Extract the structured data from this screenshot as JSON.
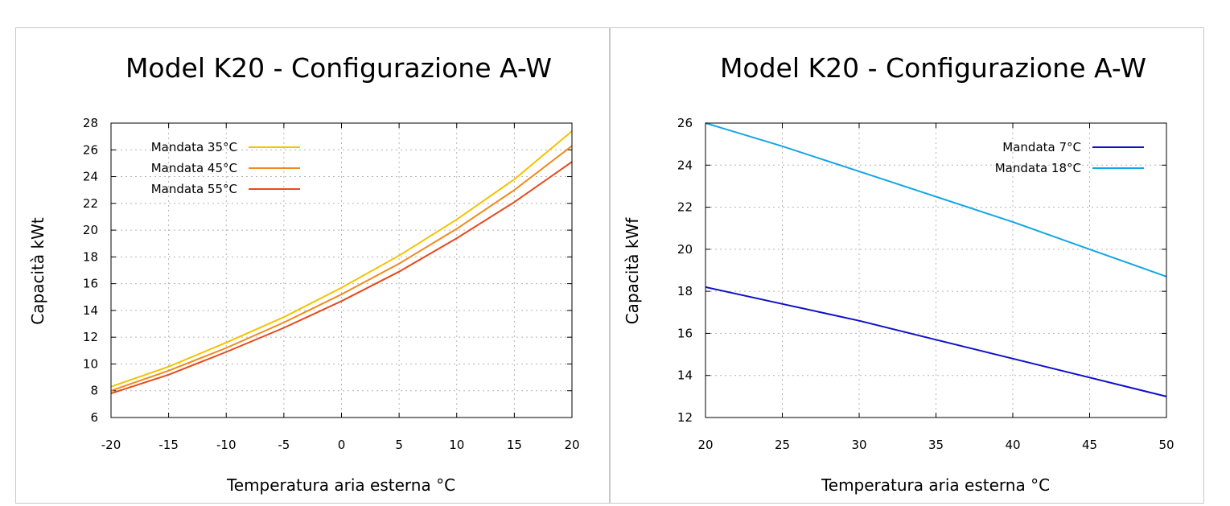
{
  "chart_data": [
    {
      "type": "line",
      "title": "Model K20 - Configurazione A-W",
      "xlabel": "Temperatura aria esterna °C",
      "ylabel": "Capacità kWt",
      "xlim": [
        -20,
        20
      ],
      "ylim": [
        6,
        28
      ],
      "xticks": [
        "-20",
        "-15",
        "-10",
        "-5",
        "0",
        "5",
        "10",
        "15",
        "20"
      ],
      "yticks": [
        "6",
        "8",
        "10",
        "12",
        "14",
        "16",
        "18",
        "20",
        "22",
        "24",
        "26",
        "28"
      ],
      "grid": true,
      "legend_position": "top-left",
      "x": [
        -20,
        -15,
        -10,
        -5,
        0,
        5,
        10,
        15,
        20
      ],
      "series": [
        {
          "name": "Mandata 35°C",
          "color": "#f5c200",
          "values": [
            8.3,
            9.8,
            11.6,
            13.5,
            15.7,
            18.1,
            20.8,
            23.8,
            27.4
          ]
        },
        {
          "name": "Mandata 45°C",
          "color": "#f08a1e",
          "values": [
            8.0,
            9.5,
            11.2,
            13.1,
            15.2,
            17.5,
            20.1,
            23.0,
            26.3
          ]
        },
        {
          "name": "Mandata 55°C",
          "color": "#e8491d",
          "values": [
            7.8,
            9.2,
            10.9,
            12.7,
            14.7,
            16.9,
            19.4,
            22.1,
            25.1
          ]
        }
      ]
    },
    {
      "type": "line",
      "title": "Model K20 - Configurazione A-W",
      "xlabel": "Temperatura aria esterna °C",
      "ylabel": "Capacità kWf",
      "xlim": [
        20,
        50
      ],
      "ylim": [
        12,
        26
      ],
      "xticks": [
        "20",
        "25",
        "30",
        "35",
        "40",
        "45",
        "50"
      ],
      "yticks": [
        "12",
        "14",
        "16",
        "18",
        "20",
        "22",
        "24",
        "26"
      ],
      "grid": true,
      "legend_position": "top-right",
      "x": [
        20,
        25,
        30,
        35,
        40,
        45,
        50
      ],
      "series": [
        {
          "name": "Mandata 7°C",
          "color": "#0f0fc8",
          "values": [
            18.2,
            17.4,
            16.6,
            15.7,
            14.8,
            13.9,
            13.0
          ]
        },
        {
          "name": "Mandata 18°C",
          "color": "#14a5e8",
          "values": [
            26.0,
            24.9,
            23.7,
            22.5,
            21.3,
            20.0,
            18.7
          ]
        }
      ]
    }
  ]
}
